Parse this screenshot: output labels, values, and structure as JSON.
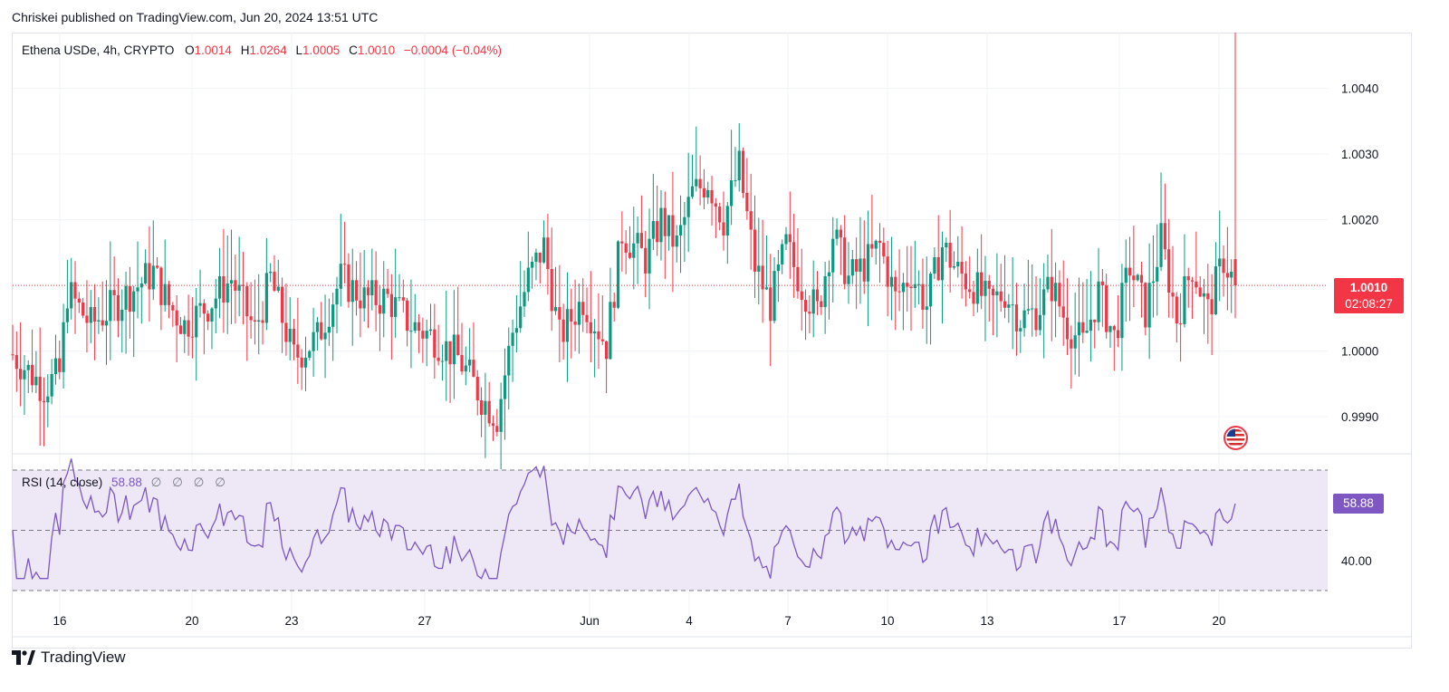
{
  "header": {
    "publisher_line": "Chriskei published on TradingView.com, Jun 20, 2024 13:51 UTC"
  },
  "legend": {
    "symbol": "Ethena USDe, 4h, CRYPTO",
    "o_label": "O",
    "o_value": "1.0014",
    "h_label": "H",
    "h_value": "1.0264",
    "l_label": "L",
    "l_value": "1.0005",
    "c_label": "C",
    "c_value": "1.0010",
    "change": "−0.0004 (−0.04%)"
  },
  "rsi_legend": {
    "label": "RSI (14, close)",
    "value": "58.88",
    "na_values": [
      "∅",
      "∅",
      "∅",
      "∅"
    ]
  },
  "price_tag": {
    "price": "1.0010",
    "countdown": "02:08:27"
  },
  "rsi_tag": "58.88",
  "colors": {
    "up": "#089981",
    "down": "#f23645",
    "rsi_line": "#7e57c2",
    "rsi_band": "#ede7f6",
    "grid": "#f0f3fa"
  },
  "brand": {
    "name": "TradingView"
  },
  "chart_data": {
    "type": "candlestick",
    "title": "Ethena USDe, 4h, CRYPTO",
    "price_axis": {
      "ticks": [
        "1.0040",
        "1.0030",
        "1.0020",
        "1.0000",
        "0.9990"
      ],
      "range": [
        0.99845,
        1.00485
      ]
    },
    "x_ticks": [
      "16",
      "20",
      "23",
      "27",
      "Jun",
      "4",
      "7",
      "10",
      "13",
      "17",
      "20"
    ],
    "current_price": 1.001,
    "rsi": {
      "tick": "40.00",
      "upper_band": 70,
      "lower_band": 30,
      "middle": 50,
      "current": 58.88
    },
    "candles": [],
    "rsi_values": []
  }
}
